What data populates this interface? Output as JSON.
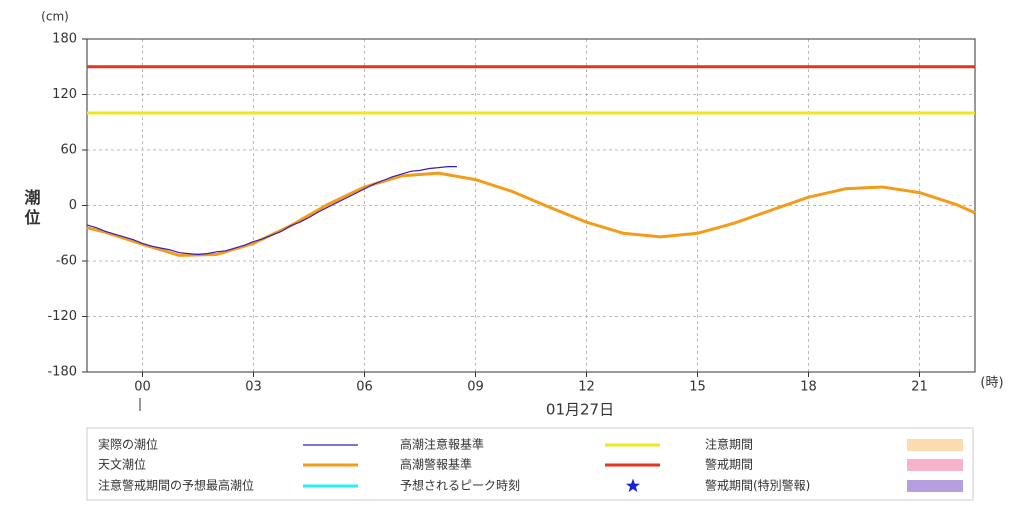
{
  "chart_data": {
    "type": "line",
    "y_label": "潮位",
    "y_unit": "(cm)",
    "x_unit": "(時)",
    "date_label": "01月27日",
    "xlim": [
      -1.5,
      22.5
    ],
    "ylim": [
      -180,
      180
    ],
    "yticks": [
      -180,
      -120,
      -60,
      0,
      60,
      120,
      180
    ],
    "xticks": [
      {
        "value": 0,
        "label": "00"
      },
      {
        "value": 3,
        "label": "03"
      },
      {
        "value": 6,
        "label": "06"
      },
      {
        "value": 9,
        "label": "09"
      },
      {
        "value": 12,
        "label": "12"
      },
      {
        "value": 15,
        "label": "15"
      },
      {
        "value": 18,
        "label": "18"
      },
      {
        "value": 21,
        "label": "21"
      }
    ],
    "grid": true,
    "series": [
      {
        "name": "実際の潮位",
        "color": "#3a1fb8",
        "width": 1.2,
        "x": [
          -1.5,
          -1.25,
          -1,
          -0.75,
          -0.5,
          -0.25,
          0,
          0.25,
          0.5,
          0.75,
          1,
          1.25,
          1.5,
          1.75,
          2,
          2.25,
          2.5,
          2.75,
          3,
          3.25,
          3.5,
          3.75,
          4,
          4.25,
          4.5,
          4.75,
          5,
          5.25,
          5.5,
          5.75,
          6,
          6.25,
          6.5,
          6.75,
          7,
          7.25,
          7.5,
          7.75,
          8,
          8.25,
          8.5
        ],
        "values": [
          -21,
          -24,
          -28,
          -31,
          -34,
          -37,
          -41,
          -44,
          -46,
          -48,
          -51,
          -52,
          -53,
          -52,
          -50,
          -49,
          -46,
          -43,
          -39,
          -36,
          -32,
          -28,
          -22,
          -18,
          -13,
          -7,
          -2,
          3,
          8,
          13,
          18,
          23,
          27,
          31,
          34,
          37,
          38,
          40,
          41,
          42,
          42
        ]
      },
      {
        "name": "天文潮位",
        "color": "#f39c1a",
        "width": 3,
        "x": [
          -1.5,
          -1,
          0,
          1,
          2,
          3,
          4,
          5,
          6,
          7,
          8,
          9,
          10,
          11,
          12,
          13,
          14,
          15,
          16,
          17,
          18,
          19,
          20,
          21,
          22,
          22.5
        ],
        "values": [
          -24,
          -29,
          -42,
          -54,
          -53,
          -41,
          -22,
          1,
          20,
          32,
          35,
          28,
          15,
          -2,
          -18,
          -30,
          -34,
          -30,
          -19,
          -5,
          9,
          18,
          20,
          14,
          1,
          -8
        ]
      }
    ],
    "thresholds": [
      {
        "name": "高潮注意報基準",
        "color": "#f2e61c",
        "value": 100
      },
      {
        "name": "高潮警報基準",
        "color": "#e5351b",
        "value": 150
      }
    ],
    "legend_only": [
      {
        "name": "注意警戒期間の予想最高潮位",
        "color": "#2af0f0",
        "symbol": "line"
      },
      {
        "name": "予想されるピーク時刻",
        "color": "#1a22d6",
        "symbol": "star"
      },
      {
        "name": "注意期間",
        "color": "#fbdcb0",
        "symbol": "rect"
      },
      {
        "name": "警戒期間",
        "color": "#f9b2cc",
        "symbol": "rect"
      },
      {
        "name": "警戒期間(特別警報)",
        "color": "#b69ee0",
        "symbol": "rect"
      }
    ]
  }
}
